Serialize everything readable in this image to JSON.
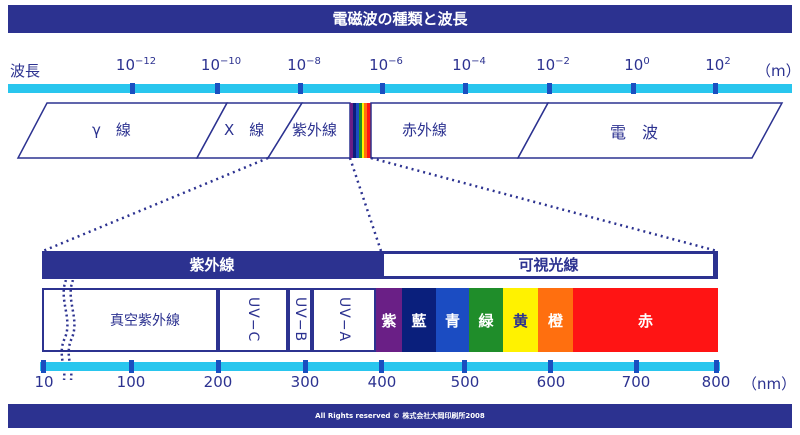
{
  "title": "電磁波の種類と波長",
  "top_axis": {
    "label": "波長",
    "unit": "（m）",
    "ticks": [
      {
        "base": "10",
        "exp": "−12"
      },
      {
        "base": "10",
        "exp": "−10"
      },
      {
        "base": "10",
        "exp": "−8"
      },
      {
        "base": "10",
        "exp": "−6"
      },
      {
        "base": "10",
        "exp": "−4"
      },
      {
        "base": "10",
        "exp": "−2"
      },
      {
        "base": "10",
        "exp": "0"
      },
      {
        "base": "10",
        "exp": "2"
      }
    ]
  },
  "bands": {
    "gamma": "γ　線",
    "xray": "X　線",
    "uv": "紫外線",
    "ir": "赤外線",
    "radio": "電　波"
  },
  "lower": {
    "uv_header": "紫外線",
    "visible_header": "可視光線",
    "uv_segments": {
      "vacuum": "真空紫外線",
      "uvc": "UV−C",
      "uvb": "UV−B",
      "uva": "UV−A"
    },
    "colors": [
      {
        "label": "紫",
        "color": "#6a1f86"
      },
      {
        "label": "藍",
        "color": "#0a1f7c"
      },
      {
        "label": "青",
        "color": "#1b4cc2"
      },
      {
        "label": "緑",
        "color": "#1f8d2a"
      },
      {
        "label": "黄",
        "color": "#fff200",
        "text": "#2c3290"
      },
      {
        "label": "橙",
        "color": "#ff6f0f"
      },
      {
        "label": "赤",
        "color": "#ff1414"
      }
    ]
  },
  "nm_axis": {
    "ticks": [
      "10",
      "100",
      "200",
      "300",
      "400",
      "500",
      "600",
      "700",
      "800"
    ],
    "unit": "（nm）"
  },
  "footer": "All Rights reserved © 株式会社大岡印刷所2008"
}
